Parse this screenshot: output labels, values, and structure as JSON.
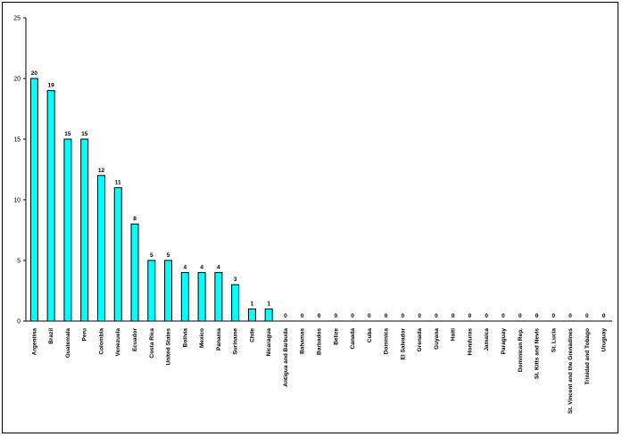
{
  "chart_data": {
    "type": "bar",
    "categories": [
      "Argentina",
      "Brazil",
      "Guatemala",
      "Peru",
      "Colombia",
      "Venezuela",
      "Ecuador",
      "Costa Rica",
      "United States",
      "Bolivia",
      "Mexico",
      "Panama",
      "Suriname",
      "Chile",
      "Nicaragua",
      "Antigua and Barbuda",
      "Bahamas",
      "Barbados",
      "Belize",
      "Canada",
      "Cuba",
      "Dominica",
      "El Salvador",
      "Grenada",
      "Guyana",
      "Haiti",
      "Honduras",
      "Jamaica",
      "Paraguay",
      "Dominican Rep.",
      "St. Kitts and Nevis",
      "St. Lucia",
      "St. Vincent and the Grenadines",
      "Trinidad and Tobago",
      "Uruguay"
    ],
    "values": [
      20,
      19,
      15,
      15,
      12,
      11,
      8,
      5,
      5,
      4,
      4,
      4,
      3,
      1,
      1,
      0,
      0,
      0,
      0,
      0,
      0,
      0,
      0,
      0,
      0,
      0,
      0,
      0,
      0,
      0,
      0,
      0,
      0,
      0,
      0
    ],
    "ylim": [
      0,
      25
    ],
    "yticks": [
      0,
      5,
      10,
      15,
      20,
      25
    ],
    "grid": false,
    "bar_color": "#00ffff",
    "show_data_labels": true
  }
}
